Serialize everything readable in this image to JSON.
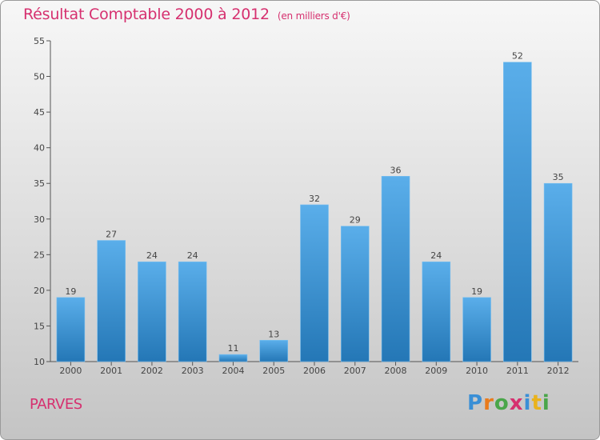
{
  "header": {
    "title": "Résultat Comptable 2000 à 2012",
    "subtitle": "(en milliers d'€)"
  },
  "footer": {
    "commune": "PARVES",
    "logo_letters": [
      "P",
      "r",
      "o",
      "x",
      "i",
      "t",
      "i"
    ],
    "logo_colors": [
      "#3a8fd6",
      "#e97b1c",
      "#4aa64a",
      "#d6306f",
      "#3a8fd6",
      "#e9b21c",
      "#4aa64a"
    ]
  },
  "chart_data": {
    "type": "bar",
    "categories": [
      "2000",
      "2001",
      "2002",
      "2003",
      "2004",
      "2005",
      "2006",
      "2007",
      "2008",
      "2009",
      "2010",
      "2011",
      "2012"
    ],
    "values": [
      19,
      27,
      24,
      24,
      11,
      13,
      32,
      29,
      36,
      24,
      19,
      52,
      35
    ],
    "ylim": [
      10,
      55
    ],
    "yticks": [
      10,
      15,
      20,
      25,
      30,
      35,
      40,
      45,
      50,
      55
    ],
    "grid": false,
    "legend": "none",
    "bar_color_top": "#5aaeea",
    "bar_color_bottom": "#2477b6"
  }
}
